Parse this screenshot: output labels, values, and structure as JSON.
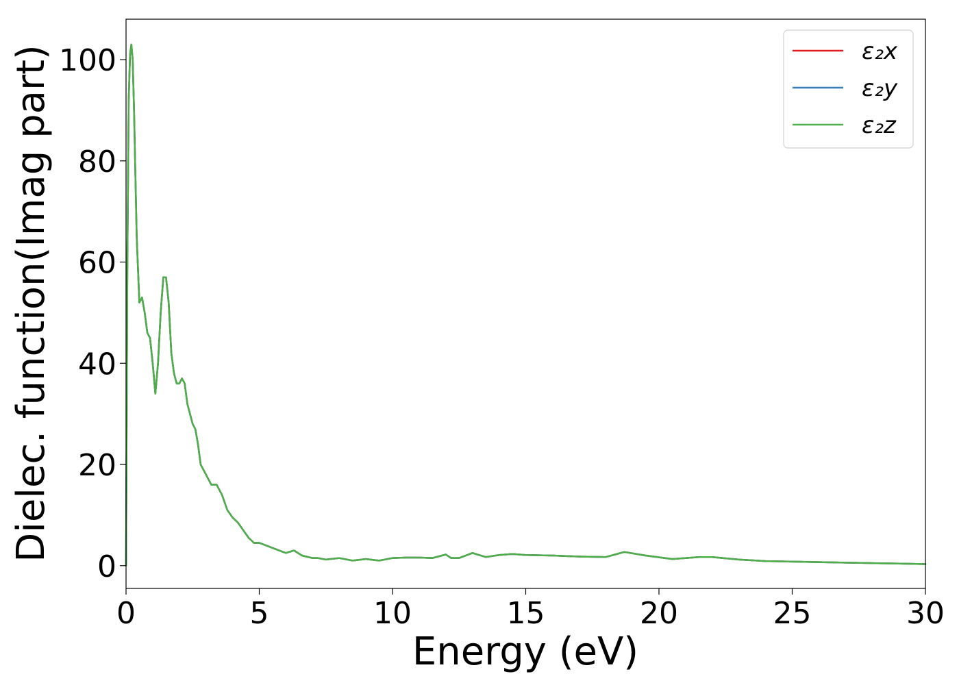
{
  "chart_data": {
    "type": "line",
    "title": "",
    "xlabel": "Energy (eV)",
    "ylabel": "Dielec. function(Imag part)",
    "xlim": [
      0,
      30
    ],
    "ylim": [
      -4.5,
      108
    ],
    "x_ticks": [
      0,
      5,
      10,
      15,
      20,
      25,
      30
    ],
    "y_ticks": [
      0,
      20,
      40,
      60,
      80,
      100
    ],
    "grid": false,
    "legend_position": "top-right",
    "series": [
      {
        "name": "ε₂x",
        "color": "#e41a1c",
        "x": [
          0,
          0.05,
          0.1,
          0.15,
          0.2,
          0.25,
          0.3,
          0.4,
          0.5,
          0.6,
          0.7,
          0.8,
          0.9,
          1.0,
          1.1,
          1.2,
          1.3,
          1.4,
          1.5,
          1.6,
          1.7,
          1.8,
          1.9,
          2.0,
          2.1,
          2.2,
          2.3,
          2.4,
          2.5,
          2.6,
          2.7,
          2.8,
          3.0,
          3.2,
          3.4,
          3.6,
          3.8,
          4.0,
          4.2,
          4.4,
          4.6,
          4.8,
          5.0,
          5.5,
          6.0,
          6.3,
          6.6,
          7.0,
          7.2,
          7.5,
          8.0,
          8.5,
          9.0,
          9.5,
          10.0,
          10.5,
          11.0,
          11.5,
          12.0,
          12.2,
          12.5,
          13.0,
          13.5,
          14.0,
          14.5,
          15.0,
          16.0,
          17.0,
          18.0,
          18.7,
          19.5,
          20.5,
          21.5,
          22.0,
          23.0,
          24.0,
          25.0,
          26.0,
          27.0,
          28.0,
          29.0,
          30.0
        ],
        "y": [
          0,
          60,
          92,
          101,
          103,
          100,
          90,
          65,
          52,
          53,
          50,
          46,
          45,
          40,
          34,
          40,
          50,
          57,
          57,
          52,
          42,
          38,
          36,
          36,
          37,
          36,
          32,
          30,
          28,
          27,
          24,
          20,
          18,
          16,
          16,
          14,
          11,
          9.5,
          8.5,
          7,
          5.5,
          4.5,
          4.5,
          3.5,
          2.5,
          3,
          2,
          1.5,
          1.5,
          1.2,
          1.5,
          1,
          1.3,
          1,
          1.5,
          1.6,
          1.6,
          1.5,
          2.2,
          1.5,
          1.5,
          2.5,
          1.7,
          2.1,
          2.3,
          2.1,
          2.0,
          1.8,
          1.7,
          2.7,
          2.0,
          1.3,
          1.7,
          1.7,
          1.2,
          0.9,
          0.8,
          0.7,
          0.6,
          0.5,
          0.4,
          0.3
        ]
      },
      {
        "name": "ε₂y",
        "color": "#377eb8",
        "x": [
          0,
          0.05,
          0.1,
          0.15,
          0.2,
          0.25,
          0.3,
          0.4,
          0.5,
          0.6,
          0.7,
          0.8,
          0.9,
          1.0,
          1.1,
          1.2,
          1.3,
          1.4,
          1.5,
          1.6,
          1.7,
          1.8,
          1.9,
          2.0,
          2.1,
          2.2,
          2.3,
          2.4,
          2.5,
          2.6,
          2.7,
          2.8,
          3.0,
          3.2,
          3.4,
          3.6,
          3.8,
          4.0,
          4.2,
          4.4,
          4.6,
          4.8,
          5.0,
          5.5,
          6.0,
          6.3,
          6.6,
          7.0,
          7.2,
          7.5,
          8.0,
          8.5,
          9.0,
          9.5,
          10.0,
          10.5,
          11.0,
          11.5,
          12.0,
          12.2,
          12.5,
          13.0,
          13.5,
          14.0,
          14.5,
          15.0,
          16.0,
          17.0,
          18.0,
          18.7,
          19.5,
          20.5,
          21.5,
          22.0,
          23.0,
          24.0,
          25.0,
          26.0,
          27.0,
          28.0,
          29.0,
          30.0
        ],
        "y": [
          0,
          60,
          92,
          101,
          103,
          100,
          90,
          65,
          52,
          53,
          50,
          46,
          45,
          40,
          34,
          40,
          50,
          57,
          57,
          52,
          42,
          38,
          36,
          36,
          37,
          36,
          32,
          30,
          28,
          27,
          24,
          20,
          18,
          16,
          16,
          14,
          11,
          9.5,
          8.5,
          7,
          5.5,
          4.5,
          4.5,
          3.5,
          2.5,
          3,
          2,
          1.5,
          1.5,
          1.2,
          1.5,
          1,
          1.3,
          1,
          1.5,
          1.6,
          1.6,
          1.5,
          2.2,
          1.5,
          1.5,
          2.5,
          1.7,
          2.1,
          2.3,
          2.1,
          2.0,
          1.8,
          1.7,
          2.7,
          2.0,
          1.3,
          1.7,
          1.7,
          1.2,
          0.9,
          0.8,
          0.7,
          0.6,
          0.5,
          0.4,
          0.3
        ]
      },
      {
        "name": "ε₂z",
        "color": "#4daf4a",
        "x": [
          0,
          0.05,
          0.1,
          0.15,
          0.2,
          0.25,
          0.3,
          0.4,
          0.5,
          0.6,
          0.7,
          0.8,
          0.9,
          1.0,
          1.1,
          1.2,
          1.3,
          1.4,
          1.5,
          1.6,
          1.7,
          1.8,
          1.9,
          2.0,
          2.1,
          2.2,
          2.3,
          2.4,
          2.5,
          2.6,
          2.7,
          2.8,
          3.0,
          3.2,
          3.4,
          3.6,
          3.8,
          4.0,
          4.2,
          4.4,
          4.6,
          4.8,
          5.0,
          5.5,
          6.0,
          6.3,
          6.6,
          7.0,
          7.2,
          7.5,
          8.0,
          8.5,
          9.0,
          9.5,
          10.0,
          10.5,
          11.0,
          11.5,
          12.0,
          12.2,
          12.5,
          13.0,
          13.5,
          14.0,
          14.5,
          15.0,
          16.0,
          17.0,
          18.0,
          18.7,
          19.5,
          20.5,
          21.5,
          22.0,
          23.0,
          24.0,
          25.0,
          26.0,
          27.0,
          28.0,
          29.0,
          30.0
        ],
        "y": [
          0,
          60,
          92,
          101,
          103,
          100,
          90,
          65,
          52,
          53,
          50,
          46,
          45,
          40,
          34,
          40,
          50,
          57,
          57,
          52,
          42,
          38,
          36,
          36,
          37,
          36,
          32,
          30,
          28,
          27,
          24,
          20,
          18,
          16,
          16,
          14,
          11,
          9.5,
          8.5,
          7,
          5.5,
          4.5,
          4.5,
          3.5,
          2.5,
          3,
          2,
          1.5,
          1.5,
          1.2,
          1.5,
          1,
          1.3,
          1,
          1.5,
          1.6,
          1.6,
          1.5,
          2.2,
          1.5,
          1.5,
          2.5,
          1.7,
          2.1,
          2.3,
          2.1,
          2.0,
          1.8,
          1.7,
          2.7,
          2.0,
          1.3,
          1.7,
          1.7,
          1.2,
          0.9,
          0.8,
          0.7,
          0.6,
          0.5,
          0.4,
          0.3
        ]
      }
    ]
  }
}
